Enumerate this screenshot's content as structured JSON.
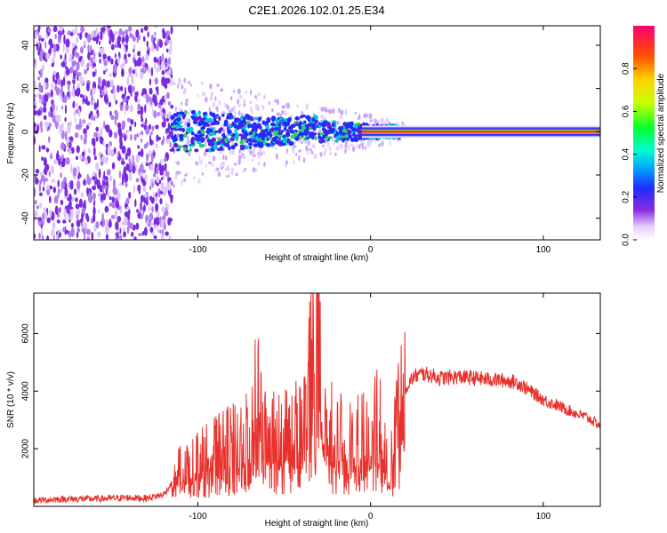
{
  "title": "C2E1.2026.102.01.25.E34",
  "chart_data": [
    {
      "type": "heatmap",
      "name": "spectrogram",
      "xlabel": "Height of straight line (km)",
      "ylabel": "Frequency (Hz)",
      "xlim": [
        -195,
        133
      ],
      "ylim": [
        -50,
        49
      ],
      "xticks": [
        -100,
        0,
        100
      ],
      "xtick_labels": [
        "-100",
        "0",
        "100"
      ],
      "yticks": [
        -40,
        -20,
        0,
        20,
        40
      ],
      "ytick_labels": [
        "-40",
        "-20",
        "0",
        "20",
        "40"
      ],
      "noise_region_x": [
        -195,
        -115
      ],
      "cluster_region_x": [
        -115,
        20
      ],
      "line_region_x": [
        -5,
        133
      ],
      "line_frequency": 0
    },
    {
      "type": "colorbar",
      "name": "colorbar",
      "label": "Normalized spectral amplitude",
      "range": [
        0,
        1
      ],
      "ticks": [
        0.0,
        0.2,
        0.4,
        0.6,
        0.8
      ],
      "tick_labels": [
        "0.0",
        "0.2",
        "0.4",
        "0.6",
        "0.8"
      ]
    },
    {
      "type": "line",
      "name": "snr",
      "xlabel": "Height of straight line (km)",
      "ylabel": "SNR (10 * v/v)",
      "xlim": [
        -195,
        133
      ],
      "ylim": [
        0,
        7400
      ],
      "xticks": [
        -100,
        0,
        100
      ],
      "xtick_labels": [
        "-100",
        "0",
        "100"
      ],
      "yticks": [
        2000,
        4000,
        6000
      ],
      "ytick_labels": [
        "2000",
        "4000",
        "6000"
      ],
      "series": [
        {
          "name": "SNR",
          "color": "#e8312c",
          "x": [
            -195,
            -180,
            -160,
            -140,
            -130,
            -120,
            -115,
            -110,
            -100,
            -90,
            -80,
            -70,
            -67,
            -60,
            -50,
            -40,
            -32,
            -29,
            -28,
            -25,
            -20,
            -10,
            0,
            5,
            10,
            11,
            15,
            20,
            25,
            30,
            35,
            40,
            50,
            60,
            70,
            80,
            85,
            90,
            100,
            110,
            120,
            125,
            133
          ],
          "values": [
            200,
            250,
            260,
            300,
            280,
            400,
            800,
            1500,
            1800,
            2100,
            2300,
            2600,
            4300,
            2500,
            2700,
            3000,
            6200,
            7400,
            3500,
            3000,
            2600,
            2400,
            2900,
            3600,
            1500,
            1100,
            3400,
            4100,
            4500,
            4600,
            4550,
            4450,
            4500,
            4450,
            4400,
            4350,
            4300,
            4100,
            3700,
            3450,
            3200,
            3100,
            2800
          ]
        }
      ]
    }
  ]
}
